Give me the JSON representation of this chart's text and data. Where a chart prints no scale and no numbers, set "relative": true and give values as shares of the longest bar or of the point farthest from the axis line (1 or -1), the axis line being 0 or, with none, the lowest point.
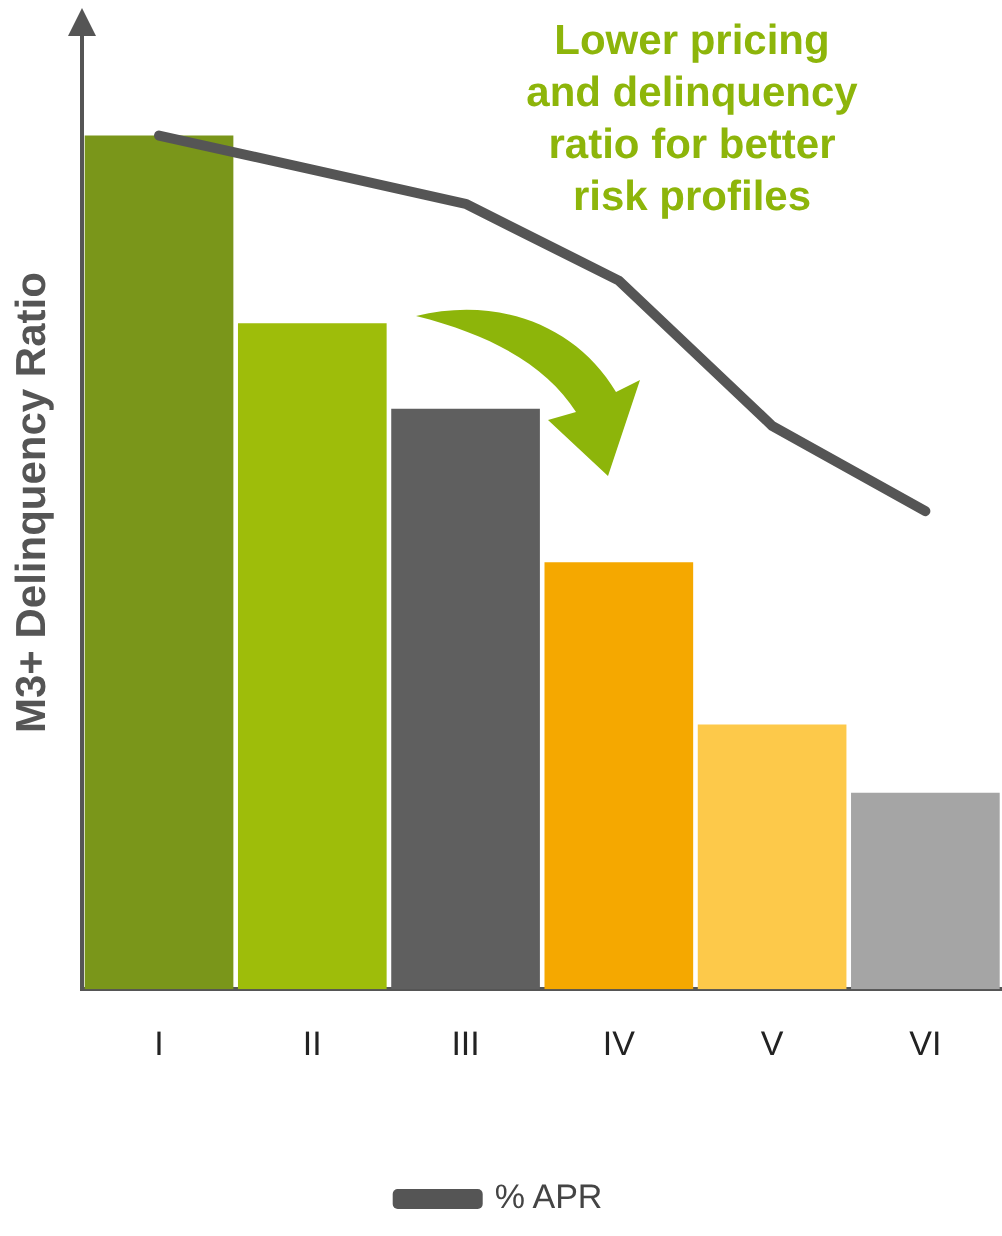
{
  "chart_data": {
    "type": "bar",
    "relative": true,
    "ylabel": "M3+ Delinquency Ratio",
    "annotations": [
      "Lower pricing\nand delinquency\nratio for better\nrisk profiles"
    ],
    "categories": [
      "I",
      "II",
      "III",
      "IV",
      "V",
      "VI"
    ],
    "legend": "bottom",
    "grid": false,
    "series": [
      {
        "colors": [
          "#7a961a",
          "#9ebd0a",
          "#5f5f5f",
          "#f5a800",
          "#fdc94a",
          "#a5a5a5"
        ],
        "values": [
          1,
          0.78,
          0.68,
          0.5,
          0.31,
          0.23
        ]
      },
      {
        "type": "line",
        "name": "% APR",
        "color": "#555555",
        "values": [
          1,
          0.96,
          0.92,
          0.83,
          0.66,
          0.56
        ]
      }
    ]
  }
}
